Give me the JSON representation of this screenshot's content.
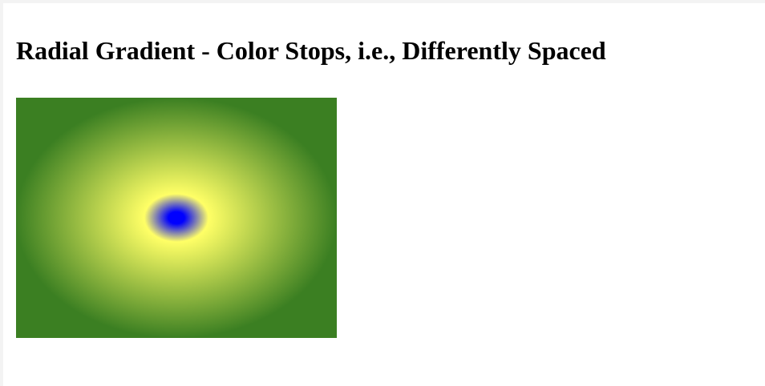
{
  "page": {
    "title": "Radial Gradient - Color Stops, i.e., Differently Spaced"
  },
  "gradient": {
    "type": "radial",
    "shape": "ellipse",
    "colors": [
      "#0000ff",
      "#ffff66",
      "#3b7f22"
    ]
  }
}
